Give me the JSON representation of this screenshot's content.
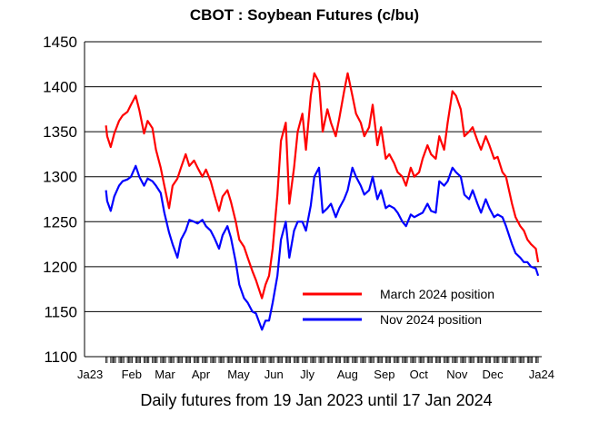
{
  "chart_data": {
    "type": "line",
    "title": "CBOT : Soybean Futures (c/bu)",
    "xlabel": "Daily futures from 19 Jan 2023 until 17 Jan 2024",
    "ylabel": "",
    "ylim": [
      1100,
      1450
    ],
    "yticks": [
      "1450",
      "1400",
      "1350",
      "1300",
      "1250",
      "1200",
      "1150",
      "1100"
    ],
    "xticks": [
      "Ja23",
      "Feb",
      "Mar",
      "Apr",
      "May",
      "Jun",
      "Jly",
      "Aug",
      "Sep",
      "Oct",
      "Nov",
      "Dec",
      "Ja24"
    ],
    "grid": "horizontal",
    "legend_position": "lower-right",
    "series": [
      {
        "name": "March 2024 position",
        "color": "#ff0000",
        "x": [
          "2023-01-19",
          "2023-01-20",
          "2023-01-23",
          "2023-01-26",
          "2023-01-30",
          "2023-02-02",
          "2023-02-06",
          "2023-02-09",
          "2023-02-13",
          "2023-02-16",
          "2023-02-20",
          "2023-02-23",
          "2023-02-27",
          "2023-03-02",
          "2023-03-06",
          "2023-03-09",
          "2023-03-13",
          "2023-03-16",
          "2023-03-20",
          "2023-03-23",
          "2023-03-27",
          "2023-03-30",
          "2023-04-03",
          "2023-04-06",
          "2023-04-10",
          "2023-04-13",
          "2023-04-17",
          "2023-04-20",
          "2023-04-24",
          "2023-04-27",
          "2023-05-01",
          "2023-05-04",
          "2023-05-08",
          "2023-05-11",
          "2023-05-15",
          "2023-05-18",
          "2023-05-22",
          "2023-05-25",
          "2023-05-30",
          "2023-06-02",
          "2023-06-05",
          "2023-06-08",
          "2023-06-12",
          "2023-06-15",
          "2023-06-19",
          "2023-06-22",
          "2023-06-26",
          "2023-06-29",
          "2023-07-03",
          "2023-07-06",
          "2023-07-10",
          "2023-07-13",
          "2023-07-17",
          "2023-07-20",
          "2023-07-24",
          "2023-07-27",
          "2023-07-31",
          "2023-08-03",
          "2023-08-07",
          "2023-08-10",
          "2023-08-14",
          "2023-08-17",
          "2023-08-21",
          "2023-08-24",
          "2023-08-28",
          "2023-08-31",
          "2023-09-04",
          "2023-09-07",
          "2023-09-11",
          "2023-09-14",
          "2023-09-18",
          "2023-09-21",
          "2023-09-25",
          "2023-09-28",
          "2023-10-02",
          "2023-10-05",
          "2023-10-09",
          "2023-10-12",
          "2023-10-16",
          "2023-10-19",
          "2023-10-23",
          "2023-10-26",
          "2023-10-30",
          "2023-11-02",
          "2023-11-06",
          "2023-11-09",
          "2023-11-13",
          "2023-11-16",
          "2023-11-20",
          "2023-11-23",
          "2023-11-27",
          "2023-11-30",
          "2023-12-04",
          "2023-12-07",
          "2023-12-11",
          "2023-12-14",
          "2023-12-18",
          "2023-12-21",
          "2023-12-26",
          "2023-12-29",
          "2024-01-02",
          "2024-01-05",
          "2024-01-08",
          "2024-01-11",
          "2024-01-15",
          "2024-01-17"
        ],
        "values": [
          1357,
          1345,
          1333,
          1348,
          1362,
          1368,
          1372,
          1380,
          1390,
          1374,
          1348,
          1362,
          1354,
          1330,
          1310,
          1290,
          1265,
          1290,
          1298,
          1310,
          1325,
          1312,
          1318,
          1310,
          1300,
          1308,
          1295,
          1280,
          1262,
          1278,
          1285,
          1272,
          1250,
          1230,
          1222,
          1210,
          1195,
          1185,
          1165,
          1180,
          1190,
          1220,
          1280,
          1340,
          1360,
          1270,
          1310,
          1350,
          1370,
          1330,
          1390,
          1415,
          1405,
          1350,
          1375,
          1360,
          1345,
          1365,
          1395,
          1415,
          1390,
          1370,
          1360,
          1345,
          1355,
          1380,
          1335,
          1355,
          1320,
          1325,
          1315,
          1305,
          1300,
          1290,
          1310,
          1300,
          1305,
          1320,
          1335,
          1325,
          1320,
          1345,
          1330,
          1360,
          1395,
          1390,
          1375,
          1345,
          1350,
          1355,
          1340,
          1330,
          1345,
          1335,
          1320,
          1322,
          1305,
          1300,
          1270,
          1255,
          1245,
          1240,
          1230,
          1225,
          1220,
          1205
        ]
      },
      {
        "name": "Nov 2024 position",
        "color": "#0000ff",
        "x": [
          "2023-01-19",
          "2023-01-20",
          "2023-01-23",
          "2023-01-26",
          "2023-01-30",
          "2023-02-02",
          "2023-02-06",
          "2023-02-09",
          "2023-02-13",
          "2023-02-16",
          "2023-02-20",
          "2023-02-23",
          "2023-02-27",
          "2023-03-02",
          "2023-03-06",
          "2023-03-09",
          "2023-03-13",
          "2023-03-16",
          "2023-03-20",
          "2023-03-23",
          "2023-03-27",
          "2023-03-30",
          "2023-04-03",
          "2023-04-06",
          "2023-04-10",
          "2023-04-13",
          "2023-04-17",
          "2023-04-20",
          "2023-04-24",
          "2023-04-27",
          "2023-05-01",
          "2023-05-04",
          "2023-05-08",
          "2023-05-11",
          "2023-05-15",
          "2023-05-18",
          "2023-05-22",
          "2023-05-25",
          "2023-05-30",
          "2023-06-02",
          "2023-06-05",
          "2023-06-08",
          "2023-06-12",
          "2023-06-15",
          "2023-06-19",
          "2023-06-22",
          "2023-06-26",
          "2023-06-29",
          "2023-07-03",
          "2023-07-06",
          "2023-07-10",
          "2023-07-13",
          "2023-07-17",
          "2023-07-20",
          "2023-07-24",
          "2023-07-27",
          "2023-07-31",
          "2023-08-03",
          "2023-08-07",
          "2023-08-10",
          "2023-08-14",
          "2023-08-17",
          "2023-08-21",
          "2023-08-24",
          "2023-08-28",
          "2023-08-31",
          "2023-09-04",
          "2023-09-07",
          "2023-09-11",
          "2023-09-14",
          "2023-09-18",
          "2023-09-21",
          "2023-09-25",
          "2023-09-28",
          "2023-10-02",
          "2023-10-05",
          "2023-10-09",
          "2023-10-12",
          "2023-10-16",
          "2023-10-19",
          "2023-10-23",
          "2023-10-26",
          "2023-10-30",
          "2023-11-02",
          "2023-11-06",
          "2023-11-09",
          "2023-11-13",
          "2023-11-16",
          "2023-11-20",
          "2023-11-23",
          "2023-11-27",
          "2023-11-30",
          "2023-12-04",
          "2023-12-07",
          "2023-12-11",
          "2023-12-14",
          "2023-12-18",
          "2023-12-21",
          "2023-12-26",
          "2023-12-29",
          "2024-01-02",
          "2024-01-05",
          "2024-01-08",
          "2024-01-11",
          "2024-01-15",
          "2024-01-17"
        ],
        "values": [
          1285,
          1273,
          1262,
          1278,
          1290,
          1295,
          1297,
          1300,
          1312,
          1300,
          1290,
          1298,
          1295,
          1290,
          1282,
          1260,
          1238,
          1225,
          1210,
          1230,
          1240,
          1252,
          1250,
          1248,
          1252,
          1245,
          1240,
          1232,
          1220,
          1235,
          1245,
          1232,
          1205,
          1180,
          1165,
          1160,
          1150,
          1148,
          1130,
          1140,
          1140,
          1160,
          1190,
          1230,
          1250,
          1210,
          1240,
          1250,
          1250,
          1240,
          1268,
          1300,
          1310,
          1260,
          1265,
          1270,
          1255,
          1265,
          1275,
          1285,
          1310,
          1300,
          1290,
          1280,
          1285,
          1300,
          1275,
          1285,
          1265,
          1268,
          1265,
          1260,
          1250,
          1245,
          1258,
          1255,
          1258,
          1260,
          1270,
          1262,
          1260,
          1295,
          1290,
          1295,
          1310,
          1305,
          1300,
          1280,
          1275,
          1285,
          1270,
          1260,
          1275,
          1265,
          1255,
          1258,
          1255,
          1245,
          1225,
          1215,
          1210,
          1205,
          1205,
          1200,
          1198,
          1190
        ]
      }
    ]
  }
}
